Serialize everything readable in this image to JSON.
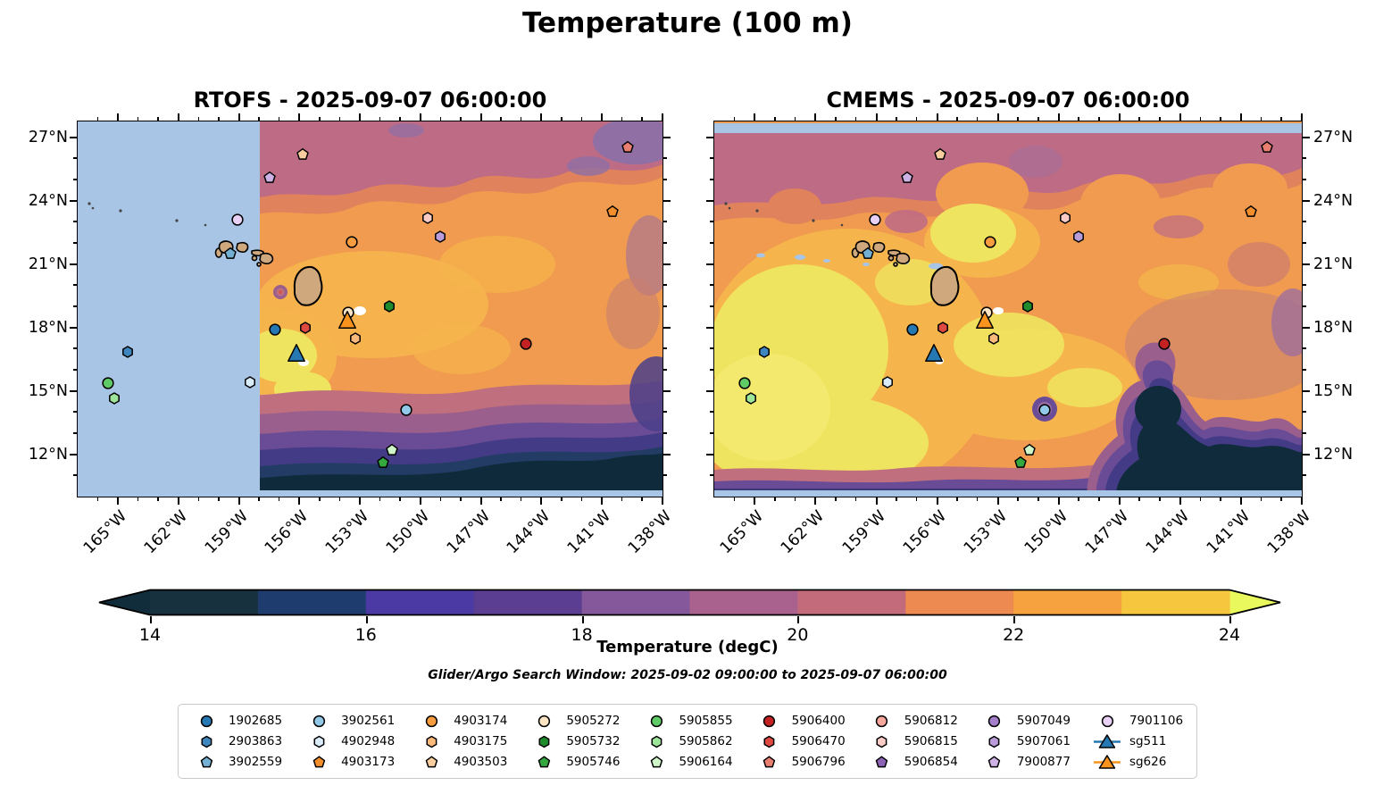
{
  "title": "Temperature (100 m)",
  "panels": [
    {
      "name": "rtofs",
      "title": "RTOFS - 2025-09-07 06:00:00"
    },
    {
      "name": "cmems",
      "title": "CMEMS - 2025-09-07 06:00:00"
    }
  ],
  "subtitle": "Glider/Argo Search Window: 2025-09-02 09:00:00 to 2025-09-07 06:00:00",
  "axes": {
    "lon_range": [
      -167,
      -138
    ],
    "lat_range": [
      27.75,
      10.0
    ],
    "lon_major": [
      {
        "v": -165,
        "label": "165°W"
      },
      {
        "v": -162,
        "label": "162°W"
      },
      {
        "v": -159,
        "label": "159°W"
      },
      {
        "v": -156,
        "label": "156°W"
      },
      {
        "v": -153,
        "label": "153°W"
      },
      {
        "v": -150,
        "label": "150°W"
      },
      {
        "v": -147,
        "label": "147°W"
      },
      {
        "v": -144,
        "label": "144°W"
      },
      {
        "v": -141,
        "label": "141°W"
      },
      {
        "v": -138,
        "label": "138°W"
      }
    ],
    "lon_minor": [
      -166,
      -164,
      -163,
      -161,
      -160,
      -158,
      -157,
      -155,
      -154,
      -152,
      -151,
      -149,
      -148,
      -146,
      -145,
      -143,
      -142,
      -140,
      -139
    ],
    "lat_major": [
      {
        "v": 27,
        "label": "27°N"
      },
      {
        "v": 24,
        "label": "24°N"
      },
      {
        "v": 21,
        "label": "21°N"
      },
      {
        "v": 18,
        "label": "18°N"
      },
      {
        "v": 15,
        "label": "15°N"
      },
      {
        "v": 12,
        "label": "12°N"
      }
    ],
    "lat_minor": [
      26,
      25,
      23,
      22,
      20,
      19,
      17,
      16,
      14,
      13,
      11
    ]
  },
  "colorbar": {
    "label": "Temperature (degC)",
    "arrow_left": "#112D3B",
    "arrow_right": "#E9F95D",
    "segments": [
      "#17313F",
      "#1E3C6D",
      "#4B3AA3",
      "#5B3D92",
      "#84589A",
      "#A9618E",
      "#C46B7B",
      "#EC8A51",
      "#F5A23F",
      "#F5C63E"
    ],
    "ticks": [
      {
        "label": "14",
        "f": 0.0
      },
      {
        "label": "16",
        "f": 0.2
      },
      {
        "label": "18",
        "f": 0.4
      },
      {
        "label": "20",
        "f": 0.6
      },
      {
        "label": "22",
        "f": 0.8
      },
      {
        "label": "24",
        "f": 1.0
      }
    ]
  },
  "map_colors": {
    "no_data_mask": "#A9C5E6",
    "land": "#CFA87D",
    "coastline": "#000000"
  },
  "markers": [
    {
      "id": "4903503",
      "shape": "pentagon",
      "color": "#F8CE9E",
      "x": 0.385,
      "y": 0.088
    },
    {
      "id": "7900877",
      "shape": "pentagon",
      "color": "#CDB2E5",
      "x": 0.328,
      "y": 0.15
    },
    {
      "id": "7901106",
      "shape": "circle",
      "color": "#E8D1F5",
      "x": 0.273,
      "y": 0.262
    },
    {
      "id": "5906815",
      "shape": "hexagon",
      "color": "#FBCBC6",
      "x": 0.598,
      "y": 0.257
    },
    {
      "id": "5907061",
      "shape": "hexagon",
      "color": "#B99CD9",
      "x": 0.62,
      "y": 0.307
    },
    {
      "id": "4903174",
      "shape": "circle",
      "color": "#F79C3F",
      "x": 0.469,
      "y": 0.321
    },
    {
      "id": "3902559",
      "shape": "pentagon",
      "color": "#74B0D4",
      "x": 0.261,
      "y": 0.352
    },
    {
      "id": "5906796",
      "shape": "pentagon",
      "color": "#E97F71",
      "x": 0.94,
      "y": 0.069
    },
    {
      "id": "4903173",
      "shape": "pentagon",
      "color": "#F28E2B",
      "x": 0.914,
      "y": 0.24
    },
    {
      "id": "5906400",
      "shape": "circle",
      "color": "#C42222",
      "x": 0.766,
      "y": 0.593
    },
    {
      "id": "5905732",
      "shape": "hexagon",
      "color": "#1E8B2C",
      "x": 0.533,
      "y": 0.493
    },
    {
      "id": "1902685",
      "shape": "circle",
      "color": "#2678B2",
      "x": 0.337,
      "y": 0.555
    },
    {
      "id": "5906470",
      "shape": "hexagon",
      "color": "#DE4A42",
      "x": 0.389,
      "y": 0.55
    },
    {
      "id": "5905272",
      "shape": "circle",
      "color": "#FBE5C4",
      "x": 0.463,
      "y": 0.509
    },
    {
      "id": "sg626",
      "shape": "triangle",
      "color": "#F9931E",
      "x": 0.461,
      "y": 0.529
    },
    {
      "id": "4903175",
      "shape": "hexagon",
      "color": "#FBB97B",
      "x": 0.475,
      "y": 0.579
    },
    {
      "id": "sg511",
      "shape": "triangle",
      "color": "#2678B2",
      "x": 0.374,
      "y": 0.617
    },
    {
      "id": "2903863",
      "shape": "hexagon",
      "color": "#3D86BE",
      "x": 0.085,
      "y": 0.614
    },
    {
      "id": "5905855",
      "shape": "circle",
      "color": "#5FCB66",
      "x": 0.052,
      "y": 0.698
    },
    {
      "id": "5905862",
      "shape": "hexagon",
      "color": "#9DE598",
      "x": 0.063,
      "y": 0.738
    },
    {
      "id": "4902948",
      "shape": "hexagon",
      "color": "#D9ECF8",
      "x": 0.295,
      "y": 0.695
    },
    {
      "id": "3902561",
      "shape": "circle",
      "color": "#93C9E8",
      "x": 0.562,
      "y": 0.769
    },
    {
      "id": "5906164",
      "shape": "pentagon",
      "color": "#CFF5C9",
      "x": 0.537,
      "y": 0.876
    },
    {
      "id": "5905746",
      "shape": "pentagon",
      "color": "#34A83F",
      "x": 0.522,
      "y": 0.91
    }
  ],
  "legend": [
    {
      "id": "1902685",
      "label": "1902685",
      "shape": "circle",
      "color": "#2678B2"
    },
    {
      "id": "2903863",
      "label": "2903863",
      "shape": "hexagon",
      "color": "#3D86BE"
    },
    {
      "id": "3902559",
      "label": "3902559",
      "shape": "pentagon",
      "color": "#74B0D4"
    },
    {
      "id": "3902561",
      "label": "3902561",
      "shape": "circle",
      "color": "#93C9E8"
    },
    {
      "id": "4902948",
      "label": "4902948",
      "shape": "hexagon",
      "color": "#D9ECF8"
    },
    {
      "id": "4903173",
      "label": "4903173",
      "shape": "pentagon",
      "color": "#F28E2B"
    },
    {
      "id": "4903174",
      "label": "4903174",
      "shape": "circle",
      "color": "#F79C3F"
    },
    {
      "id": "4903175",
      "label": "4903175",
      "shape": "hexagon",
      "color": "#FBB97B"
    },
    {
      "id": "4903503",
      "label": "4903503",
      "shape": "pentagon",
      "color": "#F8CE9E"
    },
    {
      "id": "5905272",
      "label": "5905272",
      "shape": "circle",
      "color": "#FBE5C4"
    },
    {
      "id": "5905732",
      "label": "5905732",
      "shape": "hexagon",
      "color": "#1E8B2C"
    },
    {
      "id": "5905746",
      "label": "5905746",
      "shape": "pentagon",
      "color": "#34A83F"
    },
    {
      "id": "5905855",
      "label": "5905855",
      "shape": "circle",
      "color": "#5FCB66"
    },
    {
      "id": "5905862",
      "label": "5905862",
      "shape": "hexagon",
      "color": "#9DE598"
    },
    {
      "id": "5906164",
      "label": "5906164",
      "shape": "pentagon",
      "color": "#CFF5C9"
    },
    {
      "id": "5906400",
      "label": "5906400",
      "shape": "circle",
      "color": "#C42222"
    },
    {
      "id": "5906470",
      "label": "5906470",
      "shape": "hexagon",
      "color": "#DE4A42"
    },
    {
      "id": "5906796",
      "label": "5906796",
      "shape": "pentagon",
      "color": "#E97F71"
    },
    {
      "id": "5906812",
      "label": "5906812",
      "shape": "circle",
      "color": "#F7A79C"
    },
    {
      "id": "5906815",
      "label": "5906815",
      "shape": "hexagon",
      "color": "#FBCBC6"
    },
    {
      "id": "5906854",
      "label": "5906854",
      "shape": "pentagon",
      "color": "#8C63B5"
    },
    {
      "id": "5907049",
      "label": "5907049",
      "shape": "circle",
      "color": "#A57FCB"
    },
    {
      "id": "5907061",
      "label": "5907061",
      "shape": "hexagon",
      "color": "#B99CD9"
    },
    {
      "id": "7900877",
      "label": "7900877",
      "shape": "pentagon",
      "color": "#CDB2E5"
    },
    {
      "id": "7901106",
      "label": "7901106",
      "shape": "circle",
      "color": "#E8D1F5"
    },
    {
      "id": "sg511",
      "label": "sg511",
      "shape": "triangle",
      "color": "#2678B2"
    },
    {
      "id": "sg626",
      "label": "sg626",
      "shape": "triangle",
      "color": "#F9931E"
    }
  ],
  "chart_data": {
    "type": "heatmap",
    "title": "Temperature (100 m)",
    "panels": [
      "RTOFS - 2025-09-07 06:00:00",
      "CMEMS - 2025-09-07 06:00:00"
    ],
    "variable": "Temperature (degC)",
    "lon_range": [
      -167,
      -138
    ],
    "lat_range": [
      10,
      27.75
    ],
    "lon_tick_labels": [
      "165°W",
      "162°W",
      "159°W",
      "156°W",
      "153°W",
      "150°W",
      "147°W",
      "144°W",
      "141°W",
      "138°W"
    ],
    "lat_tick_labels": [
      "27°N",
      "24°N",
      "21°N",
      "18°N",
      "15°N",
      "12°N"
    ],
    "colorbar": {
      "label": "Temperature (degC)",
      "ticks": [
        14,
        16,
        18,
        20,
        22,
        24
      ],
      "min": 14,
      "max": 24,
      "extend": "both"
    },
    "search_window": "2025-09-02 09:00:00 to 2025-09-07 06:00:00",
    "platforms": [
      {
        "id": "1902685",
        "lon": -157.2,
        "lat": 18.0
      },
      {
        "id": "2903863",
        "lon": -164.4,
        "lat": 17.0
      },
      {
        "id": "3902559",
        "lon": -159.4,
        "lat": 21.6
      },
      {
        "id": "3902561",
        "lon": -150.8,
        "lat": 14.3
      },
      {
        "id": "4902948",
        "lon": -158.4,
        "lat": 15.6
      },
      {
        "id": "4903173",
        "lon": -140.6,
        "lat": 23.5
      },
      {
        "id": "4903174",
        "lon": -153.4,
        "lat": 22.1
      },
      {
        "id": "4903175",
        "lon": -153.3,
        "lat": 17.6
      },
      {
        "id": "4903503",
        "lon": -155.8,
        "lat": 26.2
      },
      {
        "id": "5905272",
        "lon": -153.6,
        "lat": 18.7
      },
      {
        "id": "5905732",
        "lon": -151.6,
        "lat": 19.1
      },
      {
        "id": "5905746",
        "lon": -151.9,
        "lat": 11.9
      },
      {
        "id": "5905855",
        "lon": -165.4,
        "lat": 15.5
      },
      {
        "id": "5905862",
        "lon": -165.1,
        "lat": 14.8
      },
      {
        "id": "5906164",
        "lon": -151.5,
        "lat": 12.5
      },
      {
        "id": "5906400",
        "lon": -144.9,
        "lat": 17.4
      },
      {
        "id": "5906470",
        "lon": -155.7,
        "lat": 18.1
      },
      {
        "id": "5906796",
        "lon": -139.9,
        "lat": 26.5
      },
      {
        "id": "5906815",
        "lon": -149.7,
        "lat": 23.2
      },
      {
        "id": "5907061",
        "lon": -149.1,
        "lat": 22.4
      },
      {
        "id": "7900877",
        "lon": -157.5,
        "lat": 25.1
      },
      {
        "id": "7901106",
        "lon": -159.0,
        "lat": 23.1
      },
      {
        "id": "sg511",
        "lon": -156.2,
        "lat": 17.0
      },
      {
        "id": "sg626",
        "lon": -153.7,
        "lat": 18.5
      }
    ]
  }
}
